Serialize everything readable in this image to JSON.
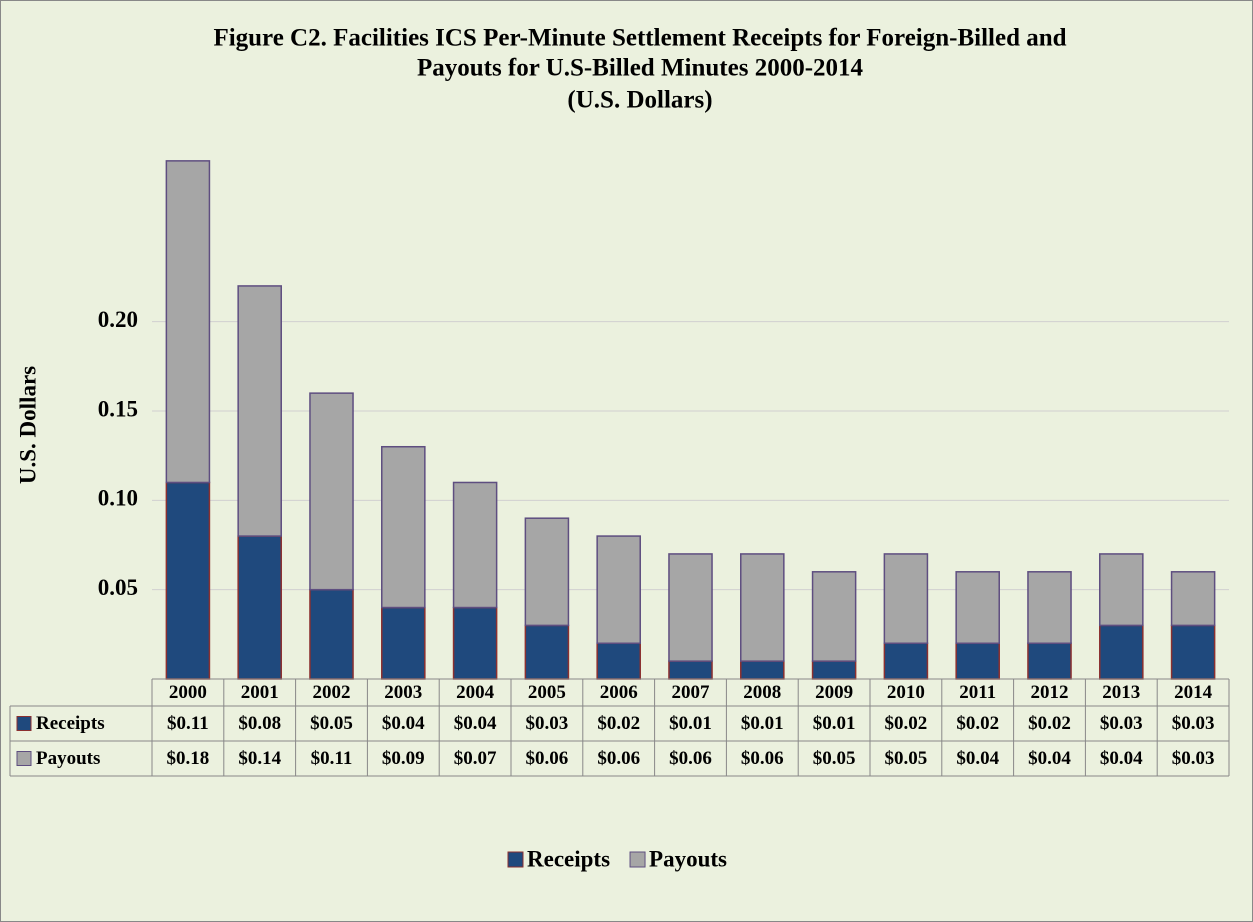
{
  "chart_data": {
    "type": "stacked_bar",
    "title": [
      "Figure C2.   Facilities ICS Per-Minute Settlement Receipts for Foreign-Billed and",
      "Payouts for U.S-Billed Minutes 2000-2014"
    ],
    "subtitle": "(U.S. Dollars)",
    "y_label": "U.S. Dollars",
    "categories": [
      "2000",
      "2001",
      "2002",
      "2003",
      "2004",
      "2005",
      "2006",
      "2007",
      "2008",
      "2009",
      "2010",
      "2011",
      "2012",
      "2013",
      "2014"
    ],
    "series": [
      {
        "name": "Receipts",
        "color": "#1f497d",
        "edge": "#8b3030",
        "values": [
          0.11,
          0.08,
          0.05,
          0.04,
          0.04,
          0.03,
          0.02,
          0.01,
          0.01,
          0.01,
          0.02,
          0.02,
          0.02,
          0.03,
          0.03
        ],
        "value_labels": [
          "$0.11",
          "$0.08",
          "$0.05",
          "$0.04",
          "$0.04",
          "$0.03",
          "$0.02",
          "$0.01",
          "$0.01",
          "$0.01",
          "$0.02",
          "$0.02",
          "$0.02",
          "$0.03",
          "$0.03"
        ]
      },
      {
        "name": "Payouts",
        "color": "#a6a6a6",
        "edge": "#5e4e80",
        "values": [
          0.18,
          0.14,
          0.11,
          0.09,
          0.07,
          0.06,
          0.06,
          0.06,
          0.06,
          0.05,
          0.05,
          0.04,
          0.04,
          0.04,
          0.03
        ],
        "value_labels": [
          "$0.18",
          "$0.14",
          "$0.11",
          "$0.09",
          "$0.07",
          "$0.06",
          "$0.06",
          "$0.06",
          "$0.06",
          "$0.05",
          "$0.05",
          "$0.04",
          "$0.04",
          "$0.04",
          "$0.03"
        ]
      }
    ],
    "ylim": [
      0,
      0.3
    ],
    "yticks": [
      {
        "value": 0.05,
        "label": "0.05"
      },
      {
        "value": 0.1,
        "label": "0.10"
      },
      {
        "value": 0.15,
        "label": "0.15"
      },
      {
        "value": 0.2,
        "label": "0.20"
      }
    ],
    "grid": true,
    "legend": "bottom"
  }
}
